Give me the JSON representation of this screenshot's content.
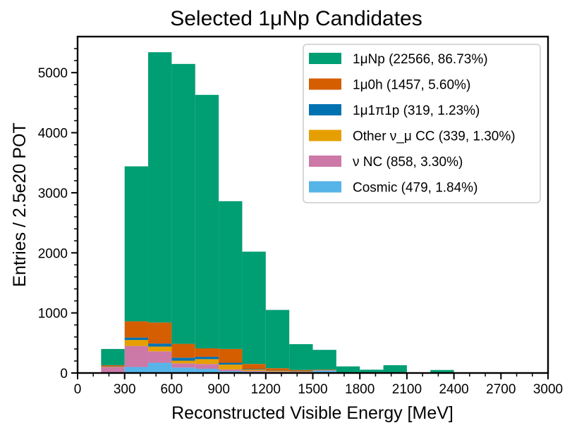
{
  "chart_data": {
    "type": "bar",
    "stacked": true,
    "title": "Selected 1μNp Candidates",
    "xlabel": "Reconstructed Visible Energy [MeV]",
    "ylabel": "Entries / 2.5e20 POT",
    "xlim": [
      0,
      3000
    ],
    "ylim": [
      0,
      5600
    ],
    "xticks": [
      "0",
      "300",
      "600",
      "900",
      "1200",
      "1500",
      "1800",
      "2100",
      "2400",
      "2700",
      "3000"
    ],
    "yticks": [
      "0",
      "1000",
      "2000",
      "3000",
      "4000",
      "5000"
    ],
    "bin_edges": [
      150,
      300,
      450,
      600,
      750,
      900,
      1050,
      1200,
      1350,
      1500,
      1650,
      1800,
      1950,
      2100,
      2250,
      2400
    ],
    "legend_position": "top-right",
    "grid": false,
    "series": [
      {
        "name": "Cosmic (479, 1.84%)",
        "color": "#56b4e9",
        "values": [
          0,
          100,
          170,
          90,
          70,
          30,
          20,
          15,
          10,
          40,
          0,
          0,
          0,
          0,
          0
        ]
      },
      {
        "name": "ν NC (858, 3.30%)",
        "color": "#cc79a7",
        "values": [
          100,
          350,
          190,
          70,
          80,
          30,
          15,
          10,
          10,
          5,
          0,
          0,
          0,
          0,
          0
        ]
      },
      {
        "name": "Other ν_μ CC (339, 1.30%)",
        "color": "#e69f00",
        "values": [
          5,
          100,
          80,
          45,
          80,
          80,
          20,
          10,
          5,
          0,
          0,
          0,
          0,
          0,
          0
        ]
      },
      {
        "name": "1μ1π1p (319, 1.23%)",
        "color": "#0072b2",
        "values": [
          5,
          40,
          50,
          50,
          40,
          30,
          10,
          5,
          5,
          0,
          0,
          0,
          0,
          0,
          0
        ]
      },
      {
        "name": "1μ0h (1457, 5.60%)",
        "color": "#d55e00",
        "values": [
          20,
          270,
          350,
          230,
          140,
          230,
          85,
          40,
          20,
          10,
          0,
          0,
          0,
          0,
          0
        ]
      },
      {
        "name": "1μNp (22566, 86.73%)",
        "color": "#009e73",
        "values": [
          270,
          2580,
          4500,
          4660,
          4220,
          2460,
          1870,
          970,
          430,
          330,
          110,
          55,
          130,
          0,
          50
        ]
      }
    ]
  },
  "legend_order": [
    5,
    4,
    3,
    2,
    1,
    0
  ],
  "legend": {
    "items": [
      {
        "main": "1",
        "mu": "μ",
        "rest": "Np (22566, 86.73%)"
      }
    ]
  }
}
